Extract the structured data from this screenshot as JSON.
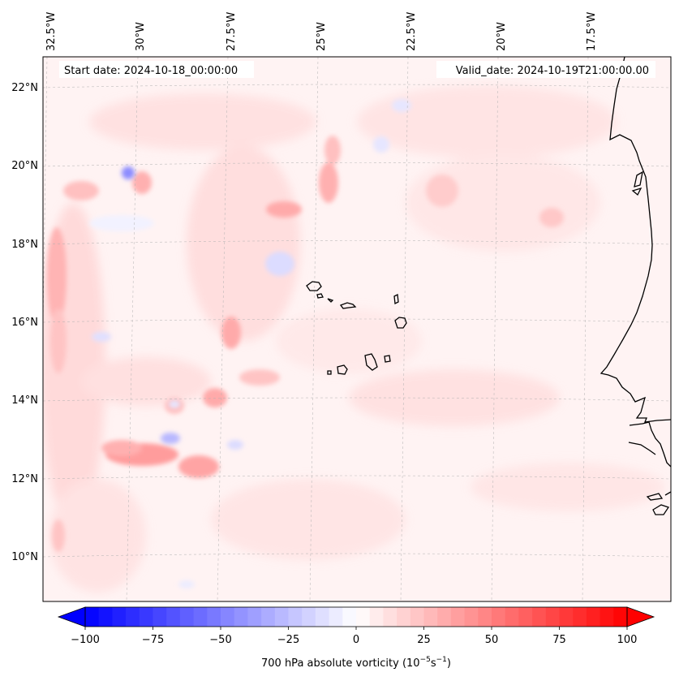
{
  "header": {
    "start_date": "Start date: 2024-10-18_00:00:00",
    "valid_date": "Valid_date: 2024-10-19T21:00:00.00"
  },
  "axes": {
    "lon_labels": [
      "32.5°W",
      "30°W",
      "27.5°W",
      "25°W",
      "22.5°W",
      "20°W",
      "17.5°W"
    ],
    "lat_labels": [
      "22°N",
      "20°N",
      "18°N",
      "16°N",
      "14°N",
      "12°N",
      "10°N"
    ]
  },
  "colorbar": {
    "ticks": [
      "−100",
      "−75",
      "−50",
      "−25",
      "0",
      "25",
      "50",
      "75",
      "100"
    ],
    "label": "700 hPa absolute vorticity (10",
    "label_sup1": "−5",
    "label_mid": "s",
    "label_sup2": "−1",
    "label_end": ")",
    "min": -100,
    "max": 100,
    "colors": {
      "negative": "#0000ff",
      "zero": "#ffffff",
      "positive": "#ff0000"
    }
  }
}
